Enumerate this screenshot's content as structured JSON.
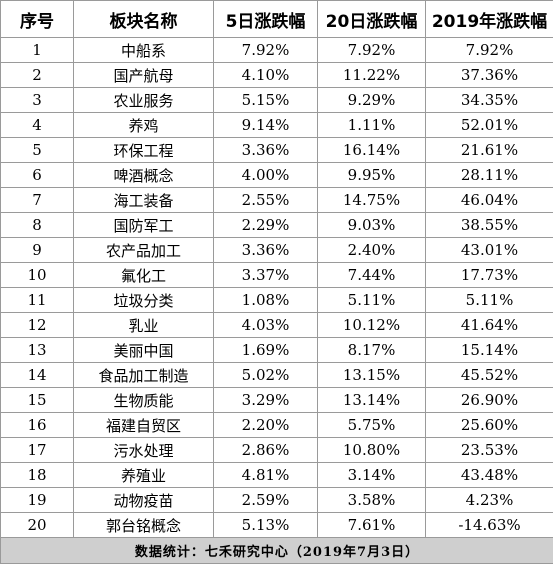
{
  "table": {
    "headers": [
      "序号",
      "板块名称",
      "5日涨跌幅",
      "20日涨跌幅",
      "2019年涨跌幅"
    ],
    "rows": [
      [
        "1",
        "中船系",
        "7.92%",
        "7.92%",
        "7.92%"
      ],
      [
        "2",
        "国产航母",
        "4.10%",
        "11.22%",
        "37.36%"
      ],
      [
        "3",
        "农业服务",
        "5.15%",
        "9.29%",
        "34.35%"
      ],
      [
        "4",
        "养鸡",
        "9.14%",
        "1.11%",
        "52.01%"
      ],
      [
        "5",
        "环保工程",
        "3.36%",
        "16.14%",
        "21.61%"
      ],
      [
        "6",
        "啤酒概念",
        "4.00%",
        "9.95%",
        "28.11%"
      ],
      [
        "7",
        "海工装备",
        "2.55%",
        "14.75%",
        "46.04%"
      ],
      [
        "8",
        "国防军工",
        "2.29%",
        "9.03%",
        "38.55%"
      ],
      [
        "9",
        "农产品加工",
        "3.36%",
        "2.40%",
        "43.01%"
      ],
      [
        "10",
        "氟化工",
        "3.37%",
        "7.44%",
        "17.73%"
      ],
      [
        "11",
        "垃圾分类",
        "1.08%",
        "5.11%",
        "5.11%"
      ],
      [
        "12",
        "乳业",
        "4.03%",
        "10.12%",
        "41.64%"
      ],
      [
        "13",
        "美丽中国",
        "1.69%",
        "8.17%",
        "15.14%"
      ],
      [
        "14",
        "食品加工制造",
        "5.02%",
        "13.15%",
        "45.52%"
      ],
      [
        "15",
        "生物质能",
        "3.29%",
        "13.14%",
        "26.90%"
      ],
      [
        "16",
        "福建自贸区",
        "2.20%",
        "5.75%",
        "25.60%"
      ],
      [
        "17",
        "污水处理",
        "2.86%",
        "10.80%",
        "23.53%"
      ],
      [
        "18",
        "养殖业",
        "4.81%",
        "3.14%",
        "43.48%"
      ],
      [
        "19",
        "动物疫苗",
        "2.59%",
        "3.58%",
        "4.23%"
      ],
      [
        "20",
        "郭台铭概念",
        "5.13%",
        "7.61%",
        "-14.63%"
      ]
    ],
    "footer": "数据统计：七禾研究中心（2019年7月3日）"
  }
}
